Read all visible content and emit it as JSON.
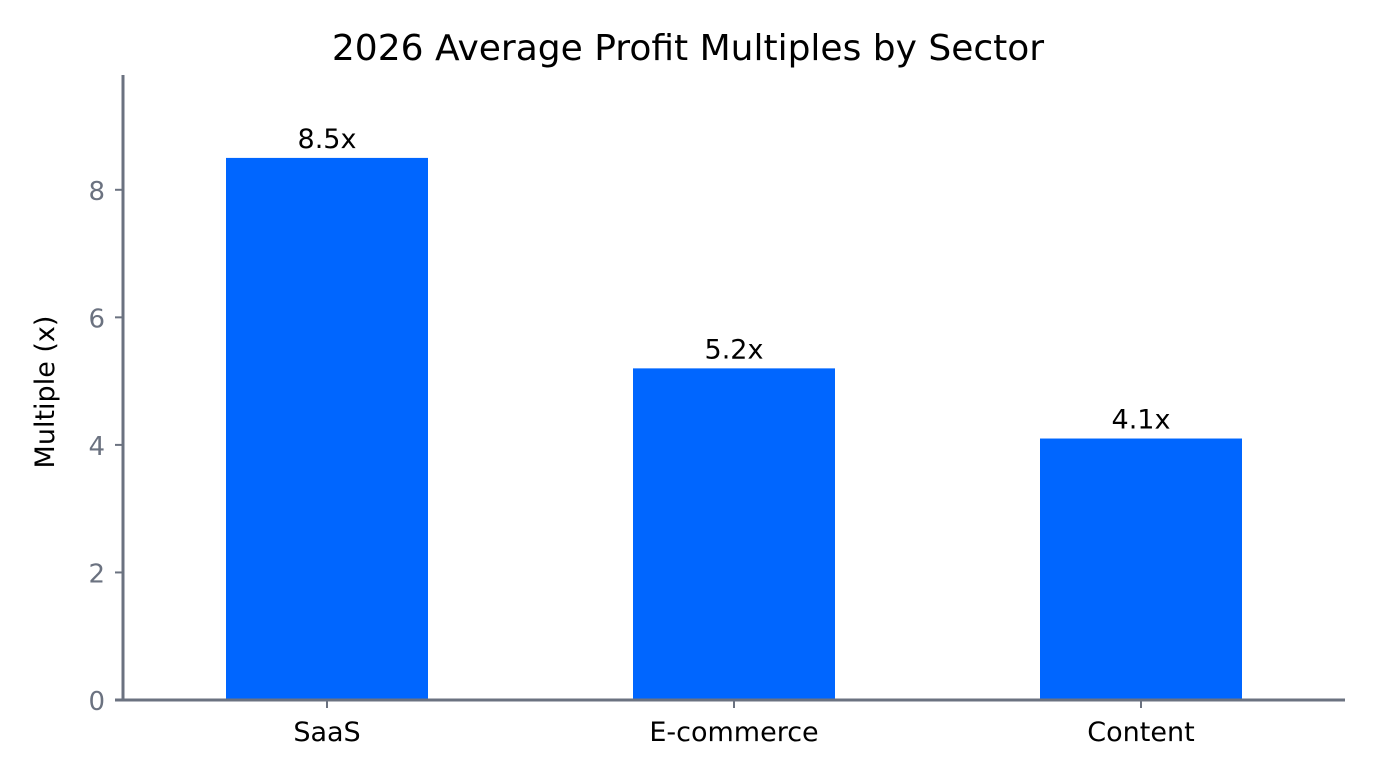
{
  "chart_data": {
    "type": "bar",
    "title": "2026 Average Profit Multiples by Sector",
    "xlabel": "",
    "ylabel": "Multiple (x)",
    "categories": [
      "SaaS",
      "E-commerce",
      "Content"
    ],
    "values": [
      8.5,
      5.2,
      4.1
    ],
    "data_labels": [
      "8.5x",
      "5.2x",
      "4.1x"
    ],
    "yticks": [
      0,
      2,
      4,
      6,
      8
    ],
    "ylim": [
      0,
      9.8
    ],
    "grid": false,
    "legend": "none",
    "colors": {
      "bar": "#0066ff",
      "axis": "#6b7280",
      "tick_label": "#6b7280"
    }
  }
}
